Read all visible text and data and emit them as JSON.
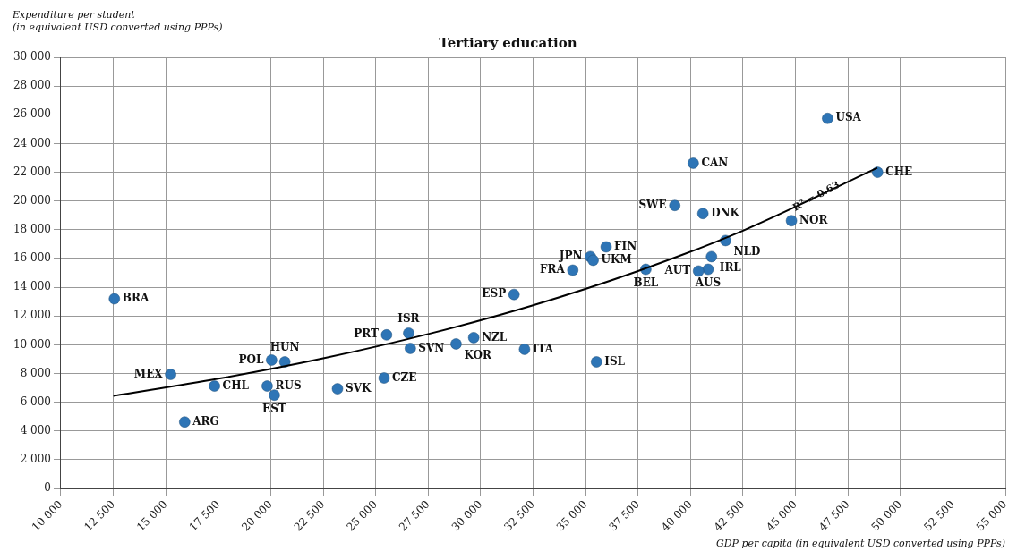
{
  "chart_data": {
    "type": "scatter",
    "title": "Tertiary education",
    "ylabel": "Expenditure per student\n(in equivalent USD converted using PPPs)",
    "xlabel": "GDP per capita (in equivalent USD converted using PPPs)",
    "xlim": [
      10000,
      55000
    ],
    "xticks": [
      {
        "value": 10000,
        "label": "10 000"
      },
      {
        "value": 12500,
        "label": "12 500"
      },
      {
        "value": 15000,
        "label": "15 000"
      },
      {
        "value": 17500,
        "label": "17 500"
      },
      {
        "value": 20000,
        "label": "20 000"
      },
      {
        "value": 22500,
        "label": "22 500"
      },
      {
        "value": 25000,
        "label": "25 000"
      },
      {
        "value": 27500,
        "label": "27 500"
      },
      {
        "value": 30000,
        "label": "30 000"
      },
      {
        "value": 32500,
        "label": "32 500"
      },
      {
        "value": 35000,
        "label": "35 000"
      },
      {
        "value": 37500,
        "label": "37 500"
      },
      {
        "value": 40000,
        "label": "40 000"
      },
      {
        "value": 42500,
        "label": "42 500"
      },
      {
        "value": 45000,
        "label": "45 000"
      },
      {
        "value": 47500,
        "label": "47 500"
      },
      {
        "value": 50000,
        "label": "50 000"
      },
      {
        "value": 52500,
        "label": "52 500"
      },
      {
        "value": 55000,
        "label": "55 000"
      }
    ],
    "ylim": [
      0,
      30000
    ],
    "yticks": [
      0,
      {
        "value": 2000,
        "label": "2 000"
      },
      {
        "value": 4000,
        "label": "4 000"
      },
      {
        "value": 6000,
        "label": "6 000"
      },
      {
        "value": 8000,
        "label": "8 000"
      },
      {
        "value": 10000,
        "label": "10 000"
      },
      {
        "value": 12000,
        "label": "12 000"
      },
      {
        "value": 14000,
        "label": "14 000"
      },
      {
        "value": 16000,
        "label": "16 000"
      },
      {
        "value": 18000,
        "label": "18 000"
      },
      {
        "value": 20000,
        "label": "20 000"
      },
      {
        "value": 22000,
        "label": "22 000"
      },
      {
        "value": 24000,
        "label": "24 000"
      },
      {
        "value": 26000,
        "label": "26 000"
      },
      {
        "value": 28000,
        "label": "28 000"
      },
      {
        "value": 30000,
        "label": "30 000"
      }
    ],
    "grid": true,
    "legend": false,
    "annotations": [
      {
        "text": "R² = 0.63",
        "x": 46000,
        "y": 20300
      }
    ],
    "series": [
      {
        "type": "scatter",
        "color": "#2e75b6",
        "marker": "circle",
        "x": [
          12550,
          15230,
          15900,
          17320,
          20040,
          20670,
          19830,
          20170,
          23180,
          25400,
          25520,
          26570,
          26650,
          28830,
          29670,
          32090,
          31590,
          35520,
          34390,
          35230,
          35360,
          35980,
          37870,
          39250,
          40130,
          40590,
          41670,
          41000,
          40840,
          40380,
          44810,
          46530,
          48910
        ],
        "values": [
          13200,
          7940,
          4630,
          7130,
          8940,
          8810,
          7130,
          6500,
          6940,
          7690,
          10690,
          10810,
          9750,
          10060,
          10500,
          9690,
          13500,
          8810,
          15190,
          16130,
          15880,
          16810,
          15250,
          19690,
          22630,
          19130,
          17250,
          16130,
          15250,
          15130,
          18630,
          25750,
          22000
        ],
        "value_labels": [
          "BRA",
          "MEX",
          "ARG",
          "CHL",
          "POL",
          "HUN",
          "RUS",
          "EST",
          "SVK",
          "CZE",
          "PRT",
          "ISR",
          "SVN",
          "KOR",
          "NZL",
          "ITA",
          "ESP",
          "ISL",
          "FRA",
          "JPN",
          "UKM",
          "FIN",
          "BEL",
          "SWE",
          "CAN",
          "DNK",
          "NLD",
          "IRL",
          "AUS",
          "AUT",
          "NOR",
          "USA",
          "CHE"
        ]
      },
      {
        "type": "line",
        "color": "#000000",
        "marker": "none",
        "x": [
          12500,
          17500,
          22500,
          27500,
          32500,
          37500,
          42500,
          48900
        ],
        "values": [
          6440,
          7640,
          9060,
          10750,
          12750,
          15130,
          17940,
          22310
        ]
      }
    ]
  }
}
